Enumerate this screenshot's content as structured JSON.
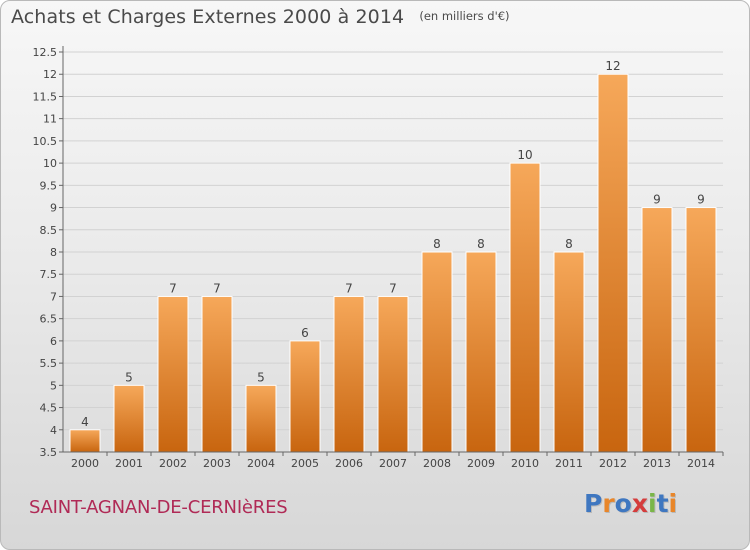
{
  "header": {
    "title": "Achats et Charges Externes 2000 à 2014",
    "unit": "(en milliers d'€)"
  },
  "footer": {
    "place": "SAINT-AGNAN-DE-CERNIèRES",
    "brand": "Proxiti"
  },
  "colors": {
    "bar_light": "#f6a85a",
    "bar_dark": "#c8650f",
    "place_text": "#b02a56",
    "axis": "#666666",
    "grid": "#d2d2d2"
  },
  "chart_data": {
    "type": "bar",
    "title": "Achats et Charges Externes 2000 à 2014",
    "subtitle": "(en milliers d'€)",
    "xlabel": "",
    "ylabel": "",
    "categories": [
      "2000",
      "2001",
      "2002",
      "2003",
      "2004",
      "2005",
      "2006",
      "2007",
      "2008",
      "2009",
      "2010",
      "2011",
      "2012",
      "2013",
      "2014"
    ],
    "values": [
      4,
      5,
      7,
      7,
      5,
      6,
      7,
      7,
      8,
      8,
      10,
      8,
      12,
      9,
      9
    ],
    "ylim": [
      3.5,
      12.5
    ],
    "yticks": [
      "3.5",
      "4",
      "4.5",
      "5",
      "5.5",
      "6",
      "6.5",
      "7",
      "7.5",
      "8",
      "8.5",
      "9",
      "9.5",
      "10",
      "10.5",
      "11",
      "11.5",
      "12",
      "12.5"
    ],
    "grid": true,
    "legend": "none"
  }
}
